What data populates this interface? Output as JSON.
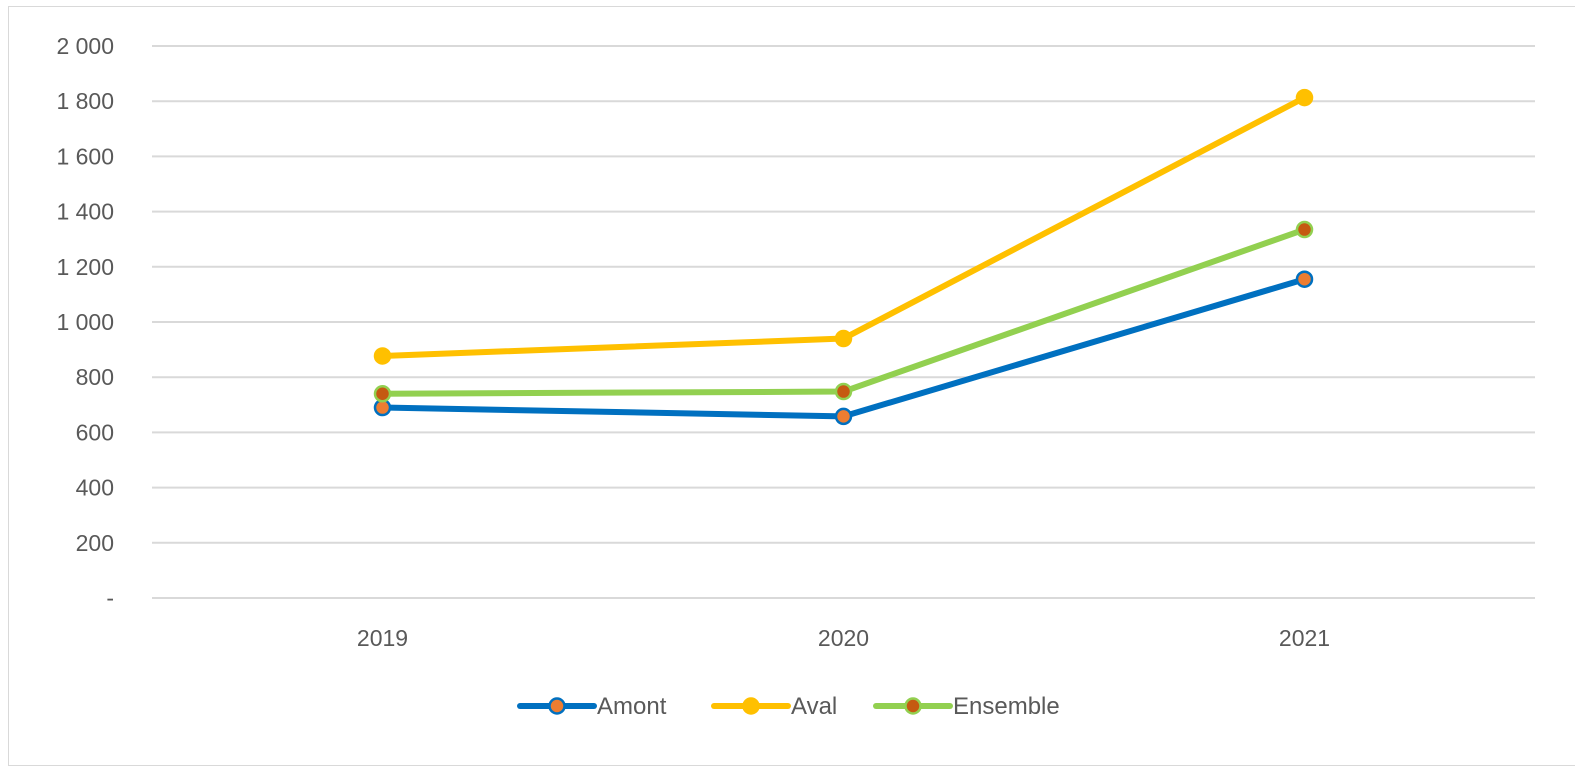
{
  "chart_data": {
    "type": "line",
    "title": "",
    "xlabel": "",
    "ylabel": "",
    "categories": [
      "2019",
      "2020",
      "2021"
    ],
    "ylim": [
      0,
      2000
    ],
    "yticks": [
      0,
      200,
      400,
      600,
      800,
      1000,
      1200,
      1400,
      1600,
      1800,
      2000
    ],
    "ytick_labels": [
      "-",
      "200",
      "400",
      "600",
      "800",
      "1 000",
      "1 200",
      "1 400",
      "1 600",
      "1 800",
      "2 000"
    ],
    "grid": "horizontal",
    "legend_position": "bottom",
    "series": [
      {
        "name": "Amont",
        "values": [
          690,
          658,
          1155
        ],
        "color": "#0070c0",
        "marker_color": "#ed7d31"
      },
      {
        "name": "Aval",
        "values": [
          877,
          940,
          1813
        ],
        "color": "#ffc000",
        "marker_color": "#ffc000"
      },
      {
        "name": "Ensemble",
        "values": [
          740,
          748,
          1335
        ],
        "color": "#92d050",
        "marker_color": "#c55a11"
      }
    ]
  }
}
